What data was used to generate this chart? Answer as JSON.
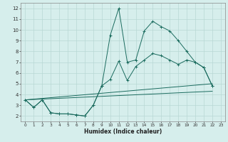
{
  "title": "",
  "xlabel": "Humidex (Indice chaleur)",
  "bg_color": "#d6eeec",
  "grid_color": "#b8d8d4",
  "line_color": "#1a6b5e",
  "xlim": [
    -0.5,
    23.5
  ],
  "ylim": [
    1.5,
    12.5
  ],
  "xticks": [
    0,
    1,
    2,
    3,
    4,
    5,
    6,
    7,
    8,
    9,
    10,
    11,
    12,
    13,
    14,
    15,
    16,
    17,
    18,
    19,
    20,
    21,
    22,
    23
  ],
  "yticks": [
    2,
    3,
    4,
    5,
    6,
    7,
    8,
    9,
    10,
    11,
    12
  ],
  "series1_x": [
    0,
    1,
    2,
    3,
    4,
    5,
    6,
    7,
    8,
    9,
    10,
    11,
    12,
    13,
    14,
    15,
    16,
    17,
    18,
    19,
    20,
    21,
    22
  ],
  "series1_y": [
    3.5,
    2.8,
    3.5,
    2.3,
    2.2,
    2.2,
    2.1,
    2.0,
    3.0,
    4.8,
    9.5,
    12.0,
    7.0,
    7.2,
    9.9,
    10.8,
    10.3,
    9.9,
    9.0,
    8.0,
    7.0,
    6.5,
    4.8
  ],
  "series2_x": [
    0,
    1,
    2,
    3,
    4,
    5,
    6,
    7,
    8,
    9,
    10,
    11,
    12,
    13,
    14,
    15,
    16,
    17,
    18,
    19,
    20,
    21,
    22
  ],
  "series2_y": [
    3.5,
    2.8,
    3.5,
    2.3,
    2.2,
    2.2,
    2.1,
    2.0,
    3.0,
    4.8,
    5.4,
    7.1,
    5.3,
    6.6,
    7.2,
    7.8,
    7.6,
    7.2,
    6.8,
    7.2,
    7.0,
    6.5,
    4.8
  ],
  "series3_x": [
    0,
    22
  ],
  "series3_y": [
    3.5,
    5.0
  ],
  "series4_x": [
    0,
    22
  ],
  "series4_y": [
    3.5,
    4.3
  ],
  "xlabel_fontsize": 5.5,
  "tick_fontsize_x": 4.2,
  "tick_fontsize_y": 5.0,
  "linewidth": 0.7,
  "markersize": 2.5,
  "markeredgewidth": 0.7
}
